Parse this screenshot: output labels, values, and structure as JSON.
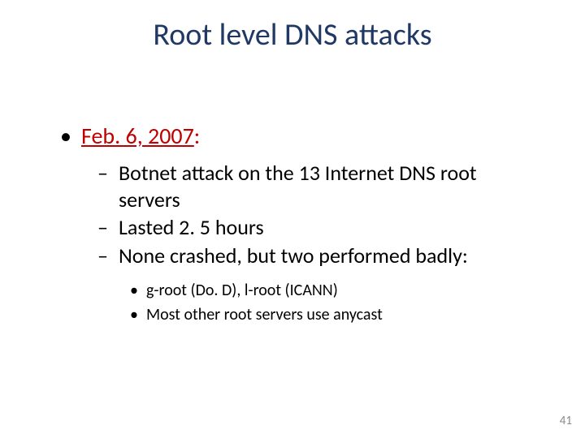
{
  "title": {
    "text": "Root level DNS attacks",
    "color": "#1f3864"
  },
  "date": {
    "label": "Feb. 6, 2007",
    "suffix": ":",
    "color": "#c00000"
  },
  "points": {
    "p1": "Botnet attack on the 13 Internet DNS root servers",
    "p2": "Lasted 2. 5 hours",
    "p3": "None crashed, but two performed badly:"
  },
  "subpoints": {
    "s1": "g-root (Do. D),   l-root  (ICANN)",
    "s2": "Most other root servers use anycast"
  },
  "pageNumber": {
    "value": "41",
    "color": "#8a8a8a"
  }
}
